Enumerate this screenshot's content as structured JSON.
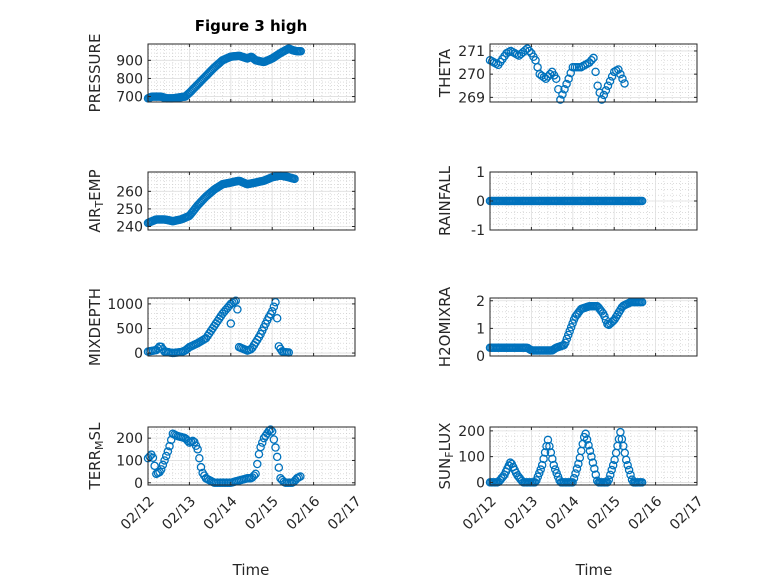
{
  "figure": {
    "title": "Figure 3 high",
    "xlabel": "Time"
  },
  "colors": {
    "marker": "#0072BD",
    "axis": "#262626",
    "grid": "#dfdfdf",
    "minor_grid": "#c8c8c8"
  },
  "chart_data": [
    {
      "type": "scatter",
      "name": "PRESSURE",
      "ylabel": "PRESSURE",
      "title": "Figure 3 high",
      "xlim": [
        0,
        5
      ],
      "ylim": [
        670,
        990
      ],
      "yticks": [
        700,
        800,
        900
      ],
      "ytick_labels": [
        "700",
        "800",
        "900"
      ],
      "x_start": 0.0,
      "x_step": 0.03,
      "anchors": [
        [
          0.0,
          690
        ],
        [
          0.1,
          700
        ],
        [
          0.3,
          700
        ],
        [
          0.45,
          690
        ],
        [
          0.6,
          690
        ],
        [
          0.9,
          700
        ],
        [
          1.0,
          720
        ],
        [
          1.3,
          790
        ],
        [
          1.6,
          860
        ],
        [
          1.8,
          900
        ],
        [
          2.0,
          920
        ],
        [
          2.2,
          925
        ],
        [
          2.4,
          910
        ],
        [
          2.5,
          920
        ],
        [
          2.6,
          900
        ],
        [
          2.8,
          890
        ],
        [
          3.0,
          910
        ],
        [
          3.2,
          940
        ],
        [
          3.4,
          965
        ],
        [
          3.5,
          955
        ],
        [
          3.6,
          950
        ],
        [
          3.7,
          950
        ]
      ]
    },
    {
      "type": "scatter",
      "name": "THETA",
      "ylabel": "THETA",
      "xlim": [
        0,
        5
      ],
      "ylim": [
        268.8,
        271.3
      ],
      "yticks": [
        269,
        270,
        271
      ],
      "ytick_labels": [
        "269",
        "270",
        "271"
      ],
      "x_start": 0.0,
      "x_step": 0.05,
      "anchors": [
        [
          0.0,
          270.6
        ],
        [
          0.2,
          270.4
        ],
        [
          0.4,
          270.9
        ],
        [
          0.5,
          271.0
        ],
        [
          0.7,
          270.8
        ],
        [
          0.9,
          271.1
        ],
        [
          1.0,
          270.9
        ],
        [
          1.1,
          270.6
        ],
        [
          1.2,
          270.0
        ],
        [
          1.35,
          269.8
        ],
        [
          1.5,
          270.1
        ],
        [
          1.6,
          269.8
        ],
        [
          1.7,
          268.9
        ],
        [
          1.9,
          269.8
        ],
        [
          2.0,
          270.3
        ],
        [
          2.2,
          270.3
        ],
        [
          2.4,
          270.5
        ],
        [
          2.5,
          270.7
        ],
        [
          2.6,
          269.5
        ],
        [
          2.7,
          268.9
        ],
        [
          2.85,
          269.5
        ],
        [
          3.0,
          270.1
        ],
        [
          3.1,
          270.2
        ],
        [
          3.25,
          269.6
        ]
      ]
    },
    {
      "type": "scatter",
      "name": "AIR_TEMP",
      "ylabel": "AIR_TEMP",
      "ylabel_main": "AIR",
      "ylabel_sub": "T",
      "ylabel_rest": "EMP",
      "xlim": [
        0,
        5
      ],
      "ylim": [
        238,
        271
      ],
      "yticks": [
        240,
        250,
        260
      ],
      "ytick_labels": [
        "240",
        "250",
        "260"
      ],
      "x_start": 0.0,
      "x_step": 0.03,
      "anchors": [
        [
          0.0,
          242
        ],
        [
          0.2,
          244
        ],
        [
          0.4,
          244
        ],
        [
          0.6,
          243
        ],
        [
          0.8,
          244
        ],
        [
          1.0,
          246
        ],
        [
          1.2,
          252
        ],
        [
          1.4,
          257
        ],
        [
          1.6,
          261
        ],
        [
          1.8,
          264
        ],
        [
          2.0,
          265
        ],
        [
          2.2,
          266
        ],
        [
          2.4,
          264
        ],
        [
          2.6,
          265
        ],
        [
          2.8,
          266
        ],
        [
          3.0,
          268
        ],
        [
          3.2,
          269
        ],
        [
          3.4,
          268
        ],
        [
          3.55,
          267
        ]
      ]
    },
    {
      "type": "scatter",
      "name": "RAINFALL",
      "ylabel": "RAINFALL",
      "xlim": [
        0,
        5
      ],
      "ylim": [
        -1,
        1
      ],
      "yticks": [
        -1,
        0,
        1
      ],
      "ytick_labels": [
        "-1",
        "0",
        "1"
      ],
      "x_start": 0.0,
      "x_step": 0.035,
      "anchors": [
        [
          0.0,
          0
        ],
        [
          3.7,
          0
        ]
      ]
    },
    {
      "type": "scatter",
      "name": "MIXDEPTH",
      "ylabel": "MIXDEPTH",
      "xlim": [
        0,
        5
      ],
      "ylim": [
        -60,
        1120
      ],
      "yticks": [
        0,
        500,
        1000
      ],
      "ytick_labels": [
        "0",
        "500",
        "1000"
      ],
      "x_start": 0.0,
      "x_step": 0.04,
      "anchors": [
        [
          0.0,
          30
        ],
        [
          0.2,
          60
        ],
        [
          0.3,
          150
        ],
        [
          0.4,
          30
        ],
        [
          0.6,
          0
        ],
        [
          0.8,
          20
        ],
        [
          0.9,
          50
        ],
        [
          1.0,
          120
        ],
        [
          1.2,
          200
        ],
        [
          1.4,
          300
        ],
        [
          1.6,
          550
        ],
        [
          1.8,
          800
        ],
        [
          2.0,
          1000
        ],
        [
          2.15,
          1080
        ],
        [
          2.2,
          120
        ],
        [
          2.4,
          50
        ],
        [
          2.5,
          80
        ],
        [
          2.7,
          350
        ],
        [
          2.9,
          700
        ],
        [
          3.0,
          850
        ],
        [
          3.1,
          1080
        ],
        [
          3.15,
          150
        ],
        [
          3.25,
          20
        ],
        [
          3.4,
          10
        ]
      ],
      "extra_points": [
        [
          2.0,
          600
        ]
      ]
    },
    {
      "type": "scatter",
      "name": "H2OMIXRA",
      "ylabel": "H2OMIXRA",
      "xlim": [
        0,
        5
      ],
      "ylim": [
        0,
        2.1
      ],
      "yticks": [
        0,
        1,
        2
      ],
      "ytick_labels": [
        "0",
        "1",
        "2"
      ],
      "x_start": 0.0,
      "x_step": 0.035,
      "anchors": [
        [
          0.0,
          0.3
        ],
        [
          0.9,
          0.3
        ],
        [
          1.0,
          0.2
        ],
        [
          1.5,
          0.2
        ],
        [
          1.6,
          0.3
        ],
        [
          1.8,
          0.4
        ],
        [
          1.95,
          1.0
        ],
        [
          2.05,
          1.4
        ],
        [
          2.2,
          1.7
        ],
        [
          2.4,
          1.8
        ],
        [
          2.6,
          1.8
        ],
        [
          2.75,
          1.5
        ],
        [
          2.85,
          1.1
        ],
        [
          3.0,
          1.3
        ],
        [
          3.2,
          1.8
        ],
        [
          3.4,
          1.95
        ],
        [
          3.7,
          1.95
        ]
      ]
    },
    {
      "type": "scatter",
      "name": "TERR_MSL",
      "ylabel": "TERR_MSL",
      "ylabel_main": "TERR",
      "ylabel_sub": "M",
      "ylabel_rest": "SL",
      "xlim": [
        0,
        5
      ],
      "ylim": [
        -10,
        250
      ],
      "yticks": [
        0,
        100,
        200
      ],
      "ytick_labels": [
        "0",
        "100",
        "200"
      ],
      "x_start": 0.0,
      "x_step": 0.04,
      "anchors": [
        [
          0.0,
          110
        ],
        [
          0.1,
          130
        ],
        [
          0.2,
          40
        ],
        [
          0.3,
          50
        ],
        [
          0.5,
          150
        ],
        [
          0.6,
          220
        ],
        [
          0.7,
          210
        ],
        [
          0.9,
          200
        ],
        [
          1.0,
          180
        ],
        [
          1.1,
          190
        ],
        [
          1.2,
          150
        ],
        [
          1.3,
          50
        ],
        [
          1.4,
          20
        ],
        [
          1.6,
          0
        ],
        [
          2.0,
          0
        ],
        [
          2.2,
          10
        ],
        [
          2.4,
          20
        ],
        [
          2.5,
          20
        ],
        [
          2.6,
          40
        ],
        [
          2.7,
          150
        ],
        [
          2.8,
          200
        ],
        [
          2.95,
          240
        ],
        [
          3.0,
          230
        ],
        [
          3.1,
          140
        ],
        [
          3.2,
          20
        ],
        [
          3.3,
          0
        ],
        [
          3.5,
          0
        ],
        [
          3.6,
          20
        ],
        [
          3.7,
          30
        ]
      ]
    },
    {
      "type": "scatter",
      "name": "SUN_FLUX",
      "ylabel": "SUN_FLUX",
      "ylabel_main": "SUN",
      "ylabel_sub": "F",
      "ylabel_rest": "LUX",
      "xlim": [
        0,
        5
      ],
      "ylim": [
        -10,
        215
      ],
      "yticks": [
        0,
        100,
        200
      ],
      "ytick_labels": [
        "0",
        "100",
        "200"
      ],
      "x_start": 0.0,
      "x_step": 0.035,
      "anchors": [
        [
          0.0,
          0
        ],
        [
          0.2,
          0
        ],
        [
          0.35,
          30
        ],
        [
          0.5,
          80
        ],
        [
          0.65,
          30
        ],
        [
          0.8,
          0
        ],
        [
          1.1,
          0
        ],
        [
          1.25,
          60
        ],
        [
          1.4,
          165
        ],
        [
          1.55,
          60
        ],
        [
          1.7,
          0
        ],
        [
          2.0,
          0
        ],
        [
          2.15,
          80
        ],
        [
          2.3,
          195
        ],
        [
          2.45,
          100
        ],
        [
          2.6,
          0
        ],
        [
          2.85,
          0
        ],
        [
          3.0,
          80
        ],
        [
          3.15,
          195
        ],
        [
          3.3,
          80
        ],
        [
          3.45,
          0
        ],
        [
          3.7,
          0
        ]
      ]
    }
  ],
  "x_axis": {
    "ticks": [
      0,
      1,
      2,
      3,
      4,
      5
    ],
    "tick_labels": [
      "02/12",
      "02/13",
      "02/14",
      "02/15",
      "02/16",
      "02/17"
    ]
  }
}
